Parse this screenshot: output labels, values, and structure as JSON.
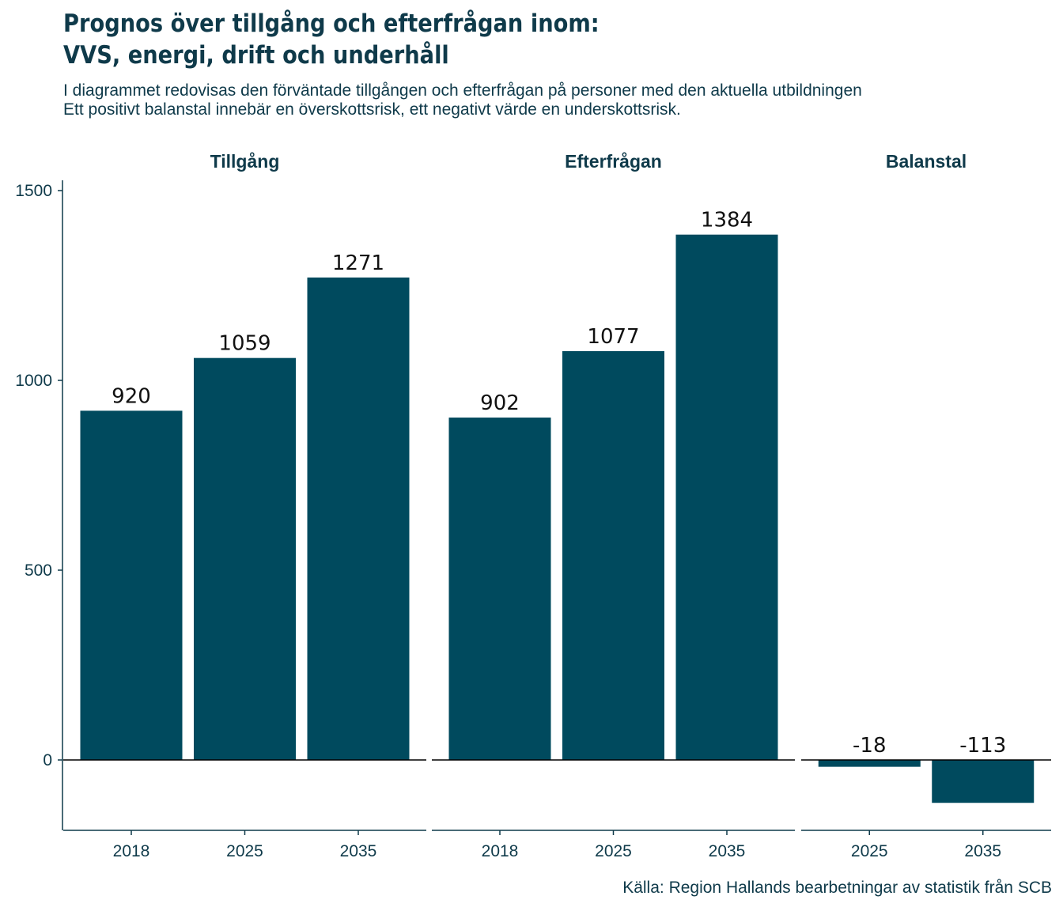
{
  "title_line1": "Prognos över tillgång och efterfrågan inom:",
  "title_line2": "VVS, energi, drift och underhåll",
  "subtitle_line1": "I diagrammet redovisas den förväntade tillgången och efterfrågan på personer med den aktuella utbildningen",
  "subtitle_line2": "Ett positivt balanstal innebär en överskottsrisk, ett negativt värde en underskottsrisk.",
  "caption": "Källa: Region Hallands bearbetningar av statistik från SCB",
  "colors": {
    "bar": "#004a5e",
    "text": "#0f3a4a"
  },
  "chart_data": {
    "type": "bar",
    "ylim": [
      -185,
      1535
    ],
    "yticks": [
      0,
      500,
      1000,
      1500
    ],
    "grid": false,
    "panels": [
      {
        "name": "Tillgång",
        "categories": [
          "2018",
          "2025",
          "2035"
        ],
        "values": [
          920,
          1059,
          1271
        ]
      },
      {
        "name": "Efterfrågan",
        "categories": [
          "2018",
          "2025",
          "2035"
        ],
        "values": [
          902,
          1077,
          1384
        ]
      },
      {
        "name": "Balanstal",
        "categories": [
          "2025",
          "2035"
        ],
        "values": [
          -18,
          -113
        ]
      }
    ]
  }
}
